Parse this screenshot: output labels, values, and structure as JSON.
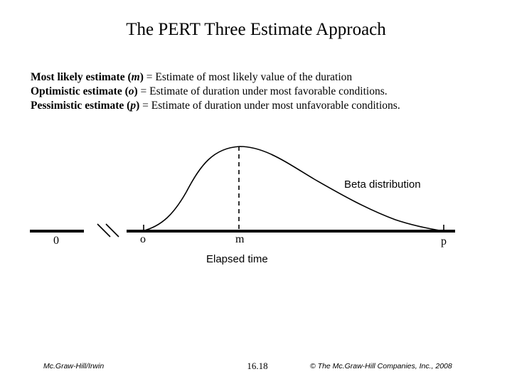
{
  "title": "The PERT Three Estimate Approach",
  "definitions": [
    {
      "term": "Most likely estimate",
      "symbol": "m",
      "text": "= Estimate of most likely value of the duration"
    },
    {
      "term": "Optimistic estimate",
      "symbol": "o",
      "text": "= Estimate of duration under most favorable conditions."
    },
    {
      "term": "Pessimistic estimate",
      "symbol": "p",
      "text": "= Estimate of duration under most unfavorable conditions."
    }
  ],
  "diagram": {
    "curve_label": "Beta distribution",
    "axis_label": "Elapsed time",
    "tick_zero": "0",
    "tick_o": "o",
    "tick_m": "m",
    "tick_p": "p"
  },
  "footer": {
    "publisher": "Mc.Graw-Hill/Irwin",
    "page_number": "16.18",
    "copyright": "© The Mc.Graw-Hill Companies, Inc., 2008"
  }
}
